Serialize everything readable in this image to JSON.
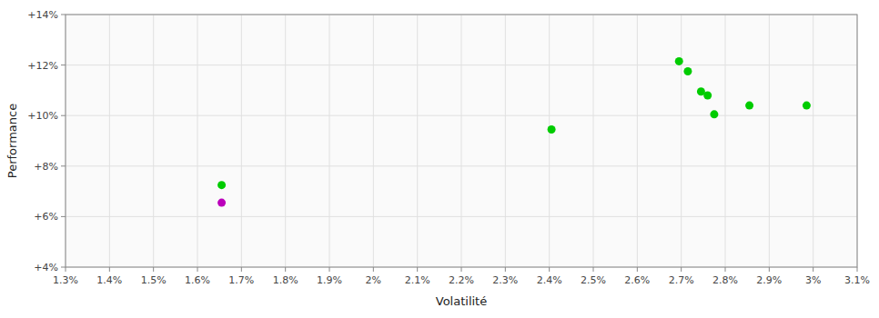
{
  "chart_data": {
    "type": "scatter",
    "xlabel": "Volatilité",
    "ylabel": "Performance",
    "xlim": [
      0.013,
      0.031
    ],
    "ylim": [
      0.04,
      0.14
    ],
    "xticks": [
      {
        "value": 0.013,
        "label": "1.3%"
      },
      {
        "value": 0.014,
        "label": "1.4%"
      },
      {
        "value": 0.015,
        "label": "1.5%"
      },
      {
        "value": 0.016,
        "label": "1.6%"
      },
      {
        "value": 0.017,
        "label": "1.7%"
      },
      {
        "value": 0.018,
        "label": "1.8%"
      },
      {
        "value": 0.019,
        "label": "1.9%"
      },
      {
        "value": 0.02,
        "label": "2%"
      },
      {
        "value": 0.021,
        "label": "2.1%"
      },
      {
        "value": 0.022,
        "label": "2.2%"
      },
      {
        "value": 0.023,
        "label": "2.3%"
      },
      {
        "value": 0.024,
        "label": "2.4%"
      },
      {
        "value": 0.025,
        "label": "2.5%"
      },
      {
        "value": 0.026,
        "label": "2.6%"
      },
      {
        "value": 0.027,
        "label": "2.7%"
      },
      {
        "value": 0.028,
        "label": "2.8%"
      },
      {
        "value": 0.029,
        "label": "2.9%"
      },
      {
        "value": 0.03,
        "label": "3%"
      },
      {
        "value": 0.031,
        "label": "3.1%"
      }
    ],
    "yticks": [
      {
        "value": 0.04,
        "label": "+4%"
      },
      {
        "value": 0.06,
        "label": "+6%"
      },
      {
        "value": 0.08,
        "label": "+8%"
      },
      {
        "value": 0.1,
        "label": "+10%"
      },
      {
        "value": 0.12,
        "label": "+12%"
      },
      {
        "value": 0.14,
        "label": "+14%"
      }
    ],
    "grid": true,
    "series": [
      {
        "color": "#00cc00",
        "x": [
          0.01655,
          0.02405,
          0.02695,
          0.02715,
          0.02745,
          0.0276,
          0.02775,
          0.02855,
          0.02985
        ],
        "values": [
          0.0725,
          0.0945,
          0.1215,
          0.1175,
          0.1095,
          0.108,
          0.1005,
          0.104,
          0.104
        ]
      },
      {
        "color": "#bb00bb",
        "x": [
          0.01655
        ],
        "values": [
          0.0655
        ]
      }
    ]
  }
}
